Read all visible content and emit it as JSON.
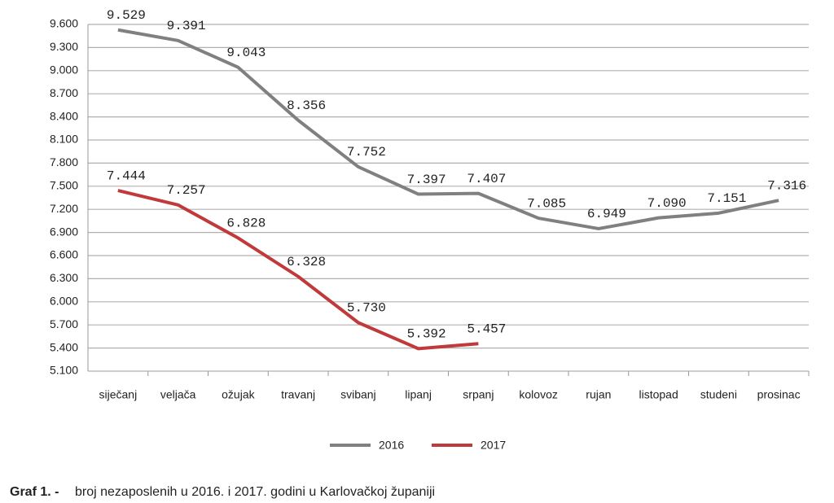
{
  "chart_data": {
    "type": "line",
    "categories": [
      "siječanj",
      "veljača",
      "ožujak",
      "travanj",
      "svibanj",
      "lipanj",
      "srpanj",
      "kolovoz",
      "rujan",
      "listopad",
      "studeni",
      "prosinac"
    ],
    "series": [
      {
        "name": "2016",
        "color": "#808080",
        "values": [
          9529,
          9391,
          9043,
          8356,
          7752,
          7397,
          7407,
          7085,
          6949,
          7090,
          7151,
          7316
        ],
        "value_labels": [
          "9.529",
          "9.391",
          "9.043",
          "8.356",
          "7.752",
          "7.397",
          "7.407",
          "7.085",
          "6.949",
          "7.090",
          "7.151",
          "7.316"
        ]
      },
      {
        "name": "2017",
        "color": "#c0393b",
        "values": [
          7444,
          7257,
          6828,
          6328,
          5730,
          5392,
          5457,
          null,
          null,
          null,
          null,
          null
        ],
        "value_labels": [
          "7.444",
          "7.257",
          "6.828",
          "6.328",
          "5.730",
          "5.392",
          "5.457",
          null,
          null,
          null,
          null,
          null
        ]
      }
    ],
    "ylim": [
      5100,
      9600
    ],
    "yticks": [
      {
        "value": 5100,
        "label": "5.100"
      },
      {
        "value": 5400,
        "label": "5.400"
      },
      {
        "value": 5700,
        "label": "5.700"
      },
      {
        "value": 6000,
        "label": "6.000"
      },
      {
        "value": 6300,
        "label": "6.300"
      },
      {
        "value": 6600,
        "label": "6.600"
      },
      {
        "value": 6900,
        "label": "6.900"
      },
      {
        "value": 7200,
        "label": "7.200"
      },
      {
        "value": 7500,
        "label": "7.500"
      },
      {
        "value": 7800,
        "label": "7.800"
      },
      {
        "value": 8100,
        "label": "8.100"
      },
      {
        "value": 8400,
        "label": "8.400"
      },
      {
        "value": 8700,
        "label": "8.700"
      },
      {
        "value": 9000,
        "label": "9.000"
      },
      {
        "value": 9300,
        "label": "9.300"
      },
      {
        "value": 9600,
        "label": "9.600"
      }
    ],
    "grid": true,
    "legend": "bottom"
  },
  "caption": {
    "label": "Graf 1. -",
    "text": "broj nezaposlenih u 2016. i 2017.  godini u Karlovačkoj županiji"
  }
}
